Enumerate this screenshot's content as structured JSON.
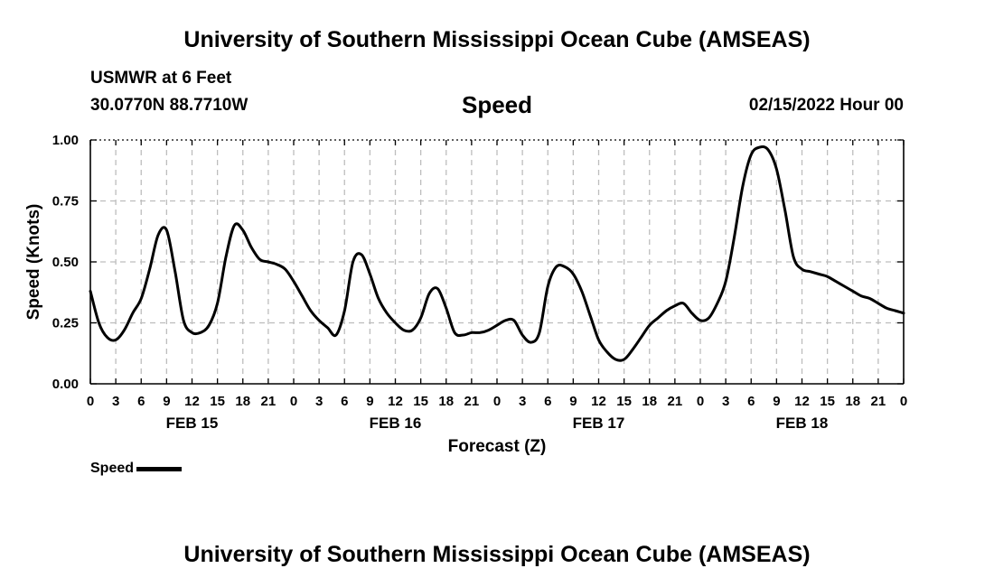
{
  "page": {
    "title_top": "University of Southern Mississippi Ocean Cube (AMSEAS)",
    "title_bottom": "University of Southern Mississippi Ocean Cube (AMSEAS)",
    "station": "USMWR at 6 Feet",
    "coords": "30.0770N  88.7710W",
    "datetime": "02/15/2022 Hour 00"
  },
  "chart_data": {
    "type": "line",
    "title": "Speed",
    "xlabel": "Forecast (Z)",
    "ylabel": "Speed (Knots)",
    "ylim": [
      0,
      1
    ],
    "yticks": [
      "0.00",
      "0.25",
      "0.50",
      "0.75",
      "1.00"
    ],
    "xlim": [
      0,
      96
    ],
    "xtick_step_hours": 3,
    "xtick_labels": [
      "0",
      "3",
      "6",
      "9",
      "12",
      "15",
      "18",
      "21",
      "0",
      "3",
      "6",
      "9",
      "12",
      "15",
      "18",
      "21",
      "0",
      "3",
      "6",
      "9",
      "12",
      "15",
      "18",
      "21",
      "0",
      "3",
      "6",
      "9",
      "12",
      "15",
      "18",
      "21",
      "0"
    ],
    "day_labels": [
      {
        "hour": 12,
        "label": "FEB 15"
      },
      {
        "hour": 36,
        "label": "FEB 16"
      },
      {
        "hour": 60,
        "label": "FEB 17"
      },
      {
        "hour": 84,
        "label": "FEB 18"
      }
    ],
    "grid": true,
    "legend": "bottom-left",
    "color": "#000000",
    "series": [
      {
        "name": "Speed",
        "x": [
          0,
          1,
          2,
          3,
          4,
          5,
          6,
          7,
          8,
          9,
          10,
          11,
          12,
          13,
          14,
          15,
          16,
          17,
          18,
          19,
          20,
          21,
          22,
          23,
          24,
          25,
          26,
          27,
          28,
          29,
          30,
          31,
          32,
          33,
          34,
          35,
          36,
          37,
          38,
          39,
          40,
          41,
          42,
          43,
          44,
          45,
          46,
          47,
          48,
          49,
          50,
          51,
          52,
          53,
          54,
          55,
          56,
          57,
          58,
          59,
          60,
          61,
          62,
          63,
          64,
          65,
          66,
          67,
          68,
          69,
          70,
          71,
          72,
          73,
          74,
          75,
          76,
          77,
          78,
          79,
          80,
          81,
          82,
          83,
          84,
          85,
          86,
          87,
          88,
          89,
          90,
          91,
          92,
          93,
          94,
          95,
          96
        ],
        "values": [
          0.38,
          0.25,
          0.19,
          0.18,
          0.22,
          0.29,
          0.35,
          0.47,
          0.61,
          0.63,
          0.46,
          0.26,
          0.21,
          0.21,
          0.24,
          0.33,
          0.52,
          0.65,
          0.63,
          0.56,
          0.51,
          0.5,
          0.49,
          0.47,
          0.42,
          0.36,
          0.3,
          0.26,
          0.23,
          0.2,
          0.3,
          0.5,
          0.53,
          0.45,
          0.35,
          0.29,
          0.25,
          0.22,
          0.22,
          0.27,
          0.37,
          0.39,
          0.31,
          0.21,
          0.2,
          0.21,
          0.21,
          0.22,
          0.24,
          0.26,
          0.26,
          0.2,
          0.17,
          0.21,
          0.4,
          0.48,
          0.48,
          0.45,
          0.38,
          0.28,
          0.18,
          0.13,
          0.1,
          0.1,
          0.14,
          0.19,
          0.24,
          0.27,
          0.3,
          0.32,
          0.33,
          0.29,
          0.26,
          0.27,
          0.33,
          0.42,
          0.6,
          0.81,
          0.94,
          0.97,
          0.96,
          0.88,
          0.71,
          0.52,
          0.47,
          0.46,
          0.45,
          0.44,
          0.42,
          0.4,
          0.38,
          0.36,
          0.35,
          0.33,
          0.31,
          0.3,
          0.29
        ]
      }
    ]
  }
}
